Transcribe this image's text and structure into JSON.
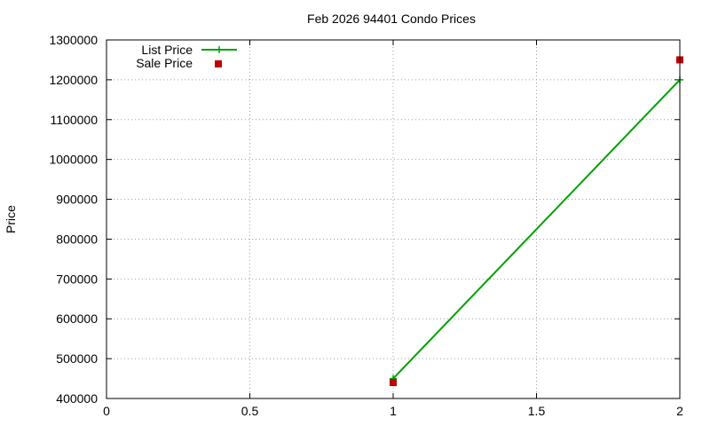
{
  "chart_data": {
    "type": "line",
    "title": "Feb 2026 94401 Condo Prices",
    "xlabel": "",
    "ylabel": "Price",
    "xlim": [
      0,
      2
    ],
    "ylim": [
      400000,
      1300000
    ],
    "x_ticks": [
      "0",
      "0.5",
      "1",
      "1.5",
      "2"
    ],
    "x_tick_values": [
      0,
      0.5,
      1,
      1.5,
      2
    ],
    "y_ticks": [
      "400000",
      "500000",
      "600000",
      "700000",
      "800000",
      "900000",
      "1000000",
      "1100000",
      "1200000",
      "1300000"
    ],
    "y_tick_values": [
      400000,
      500000,
      600000,
      700000,
      800000,
      900000,
      1000000,
      1100000,
      1200000,
      1300000
    ],
    "grid": true,
    "legend_position": "top-left",
    "series": [
      {
        "name": "List Price",
        "style": "linespoints",
        "color": "#00a000",
        "points": [
          {
            "x": 1,
            "y": 450000
          },
          {
            "x": 2,
            "y": 1200000
          }
        ]
      },
      {
        "name": "Sale Price",
        "style": "points",
        "color": "#c00000",
        "points": [
          {
            "x": 1,
            "y": 440000
          },
          {
            "x": 2,
            "y": 1250000
          }
        ]
      }
    ]
  }
}
